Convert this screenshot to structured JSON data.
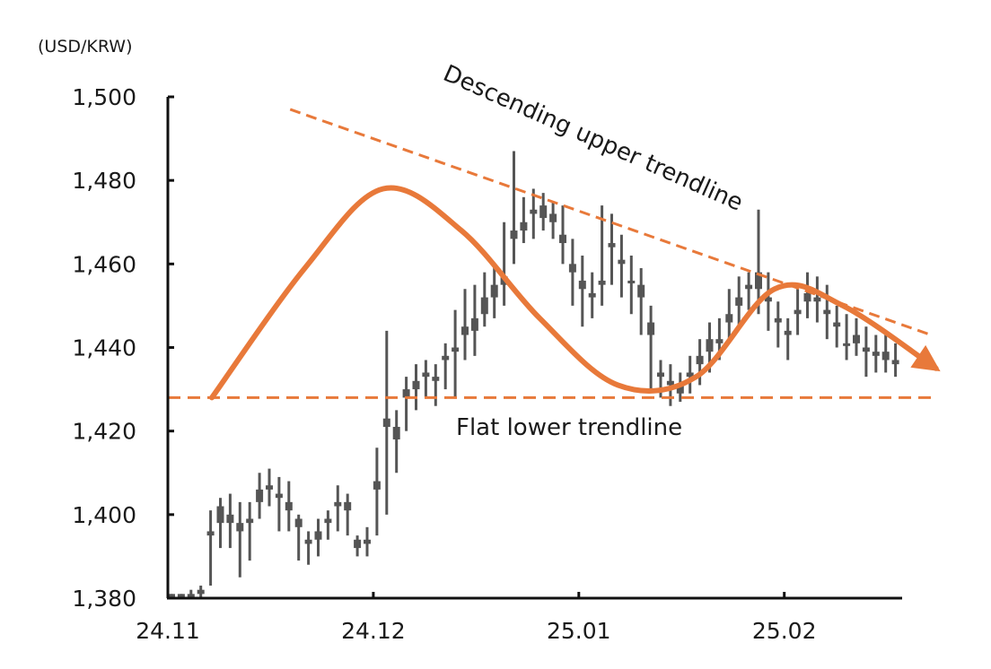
{
  "chart_data": {
    "type": "candlestick",
    "unit_label": "(USD/KRW)",
    "y_ticks": [
      "1,380",
      "1,400",
      "1,420",
      "1,440",
      "1,460",
      "1,480",
      "1,500"
    ],
    "y_tick_values": [
      1380,
      1400,
      1420,
      1440,
      1460,
      1480,
      1500
    ],
    "ylim": [
      1380,
      1500
    ],
    "x_ticks": [
      "24.11",
      "24.12",
      "25.01",
      "25.02"
    ],
    "x_tick_index": [
      0,
      21,
      42,
      63
    ],
    "x_range": [
      0,
      76
    ],
    "series": [
      {
        "type": "ohlc",
        "values": [
          [
            1381,
            1380,
            1381,
            1380
          ],
          [
            1381,
            1380,
            1381,
            1380
          ],
          [
            1381,
            1380,
            1382,
            1380
          ],
          [
            1382,
            1381,
            1383,
            1380
          ],
          [
            1396,
            1395,
            1401,
            1383
          ],
          [
            1402,
            1398,
            1404,
            1392
          ],
          [
            1398,
            1400,
            1405,
            1392
          ],
          [
            1396,
            1398,
            1403,
            1385
          ],
          [
            1399,
            1398,
            1403,
            1389
          ],
          [
            1403,
            1406,
            1410,
            1399
          ],
          [
            1406,
            1407,
            1411,
            1402
          ],
          [
            1405,
            1404,
            1409,
            1396
          ],
          [
            1401,
            1403,
            1408,
            1396
          ],
          [
            1399,
            1397,
            1400,
            1389
          ],
          [
            1394,
            1393,
            1396,
            1388
          ],
          [
            1394,
            1396,
            1399,
            1390
          ],
          [
            1399,
            1398,
            1401,
            1394
          ],
          [
            1402,
            1403,
            1407,
            1396
          ],
          [
            1403,
            1401,
            1405,
            1395
          ],
          [
            1394,
            1392,
            1395,
            1390
          ],
          [
            1393,
            1394,
            1397,
            1390
          ],
          [
            1406,
            1408,
            1416,
            1395
          ],
          [
            1421,
            1423,
            1444,
            1400
          ],
          [
            1418,
            1421,
            1425,
            1410
          ],
          [
            1428,
            1430,
            1433,
            1420
          ],
          [
            1430,
            1432,
            1436,
            1425
          ],
          [
            1433,
            1434,
            1437,
            1428
          ],
          [
            1432,
            1433,
            1436,
            1426
          ],
          [
            1437,
            1438,
            1441,
            1430
          ],
          [
            1440,
            1439,
            1449,
            1428
          ],
          [
            1443,
            1445,
            1454,
            1437
          ],
          [
            1444,
            1447,
            1455,
            1438
          ],
          [
            1448,
            1452,
            1458,
            1445
          ],
          [
            1452,
            1455,
            1460,
            1447
          ],
          [
            1457,
            1455,
            1470,
            1450
          ],
          [
            1466,
            1468,
            1487,
            1460
          ],
          [
            1468,
            1470,
            1476,
            1465
          ],
          [
            1472,
            1473,
            1478,
            1466
          ],
          [
            1471,
            1474,
            1477,
            1468
          ],
          [
            1470,
            1472,
            1475,
            1466
          ],
          [
            1465,
            1467,
            1474,
            1460
          ],
          [
            1460,
            1458,
            1466,
            1450
          ],
          [
            1456,
            1454,
            1462,
            1445
          ],
          [
            1453,
            1452,
            1458,
            1447
          ],
          [
            1456,
            1455,
            1474,
            1450
          ],
          [
            1465,
            1464,
            1472,
            1455
          ],
          [
            1461,
            1460,
            1467,
            1452
          ],
          [
            1456,
            1456,
            1462,
            1448
          ],
          [
            1455,
            1452,
            1459,
            1443
          ],
          [
            1446,
            1443,
            1450,
            1430
          ],
          [
            1434,
            1433,
            1437,
            1428
          ],
          [
            1432,
            1431,
            1436,
            1426
          ],
          [
            1429,
            1431,
            1434,
            1427
          ],
          [
            1433,
            1434,
            1438,
            1429
          ],
          [
            1436,
            1438,
            1442,
            1431
          ],
          [
            1439,
            1442,
            1446,
            1434
          ],
          [
            1441,
            1442,
            1447,
            1437
          ],
          [
            1446,
            1448,
            1454,
            1441
          ],
          [
            1450,
            1452,
            1457,
            1445
          ],
          [
            1454,
            1455,
            1458,
            1449
          ],
          [
            1454,
            1458,
            1473,
            1448
          ],
          [
            1452,
            1451,
            1458,
            1444
          ],
          [
            1447,
            1446,
            1451,
            1440
          ],
          [
            1444,
            1443,
            1447,
            1437
          ],
          [
            1448,
            1449,
            1454,
            1443
          ],
          [
            1451,
            1453,
            1458,
            1447
          ],
          [
            1452,
            1451,
            1457,
            1446
          ],
          [
            1449,
            1448,
            1455,
            1442
          ],
          [
            1446,
            1445,
            1450,
            1440
          ],
          [
            1441,
            1441,
            1448,
            1437
          ],
          [
            1443,
            1441,
            1447,
            1438
          ],
          [
            1440,
            1439,
            1445,
            1433
          ],
          [
            1438,
            1439,
            1443,
            1434
          ],
          [
            1437,
            1439,
            1443,
            1434
          ],
          [
            1437,
            1436,
            1441,
            1433
          ]
        ]
      }
    ],
    "annotations": {
      "upper_trendline_label": "Descending upper trendline",
      "lower_trendline_label": "Flat lower trendline",
      "upper_trendline": [
        [
          12.5,
          1497
        ],
        [
          78,
          1443
        ]
      ],
      "lower_trendline_value": 1428,
      "arrow_path": [
        [
          4.5,
          1428
        ],
        [
          14,
          1459
        ],
        [
          22,
          1478
        ],
        [
          30,
          1468
        ],
        [
          38,
          1447
        ],
        [
          46,
          1431
        ],
        [
          54,
          1433
        ],
        [
          62,
          1454
        ],
        [
          69,
          1450
        ],
        [
          78.5,
          1435
        ]
      ]
    },
    "colors": {
      "candles": "#555555",
      "trend": "#e8793a",
      "axis": "#111111"
    }
  }
}
